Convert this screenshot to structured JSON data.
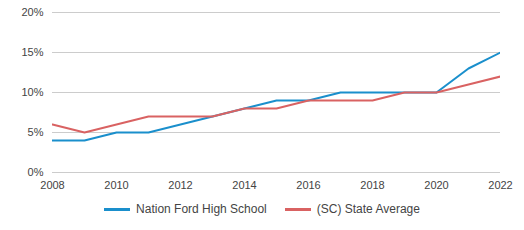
{
  "chart_data": {
    "type": "line",
    "x": [
      2008,
      2009,
      2010,
      2011,
      2012,
      2013,
      2014,
      2015,
      2016,
      2017,
      2018,
      2019,
      2020,
      2021,
      2022
    ],
    "series": [
      {
        "name": "Nation Ford High School",
        "color": "#1a8fcc",
        "values": [
          4,
          4,
          5,
          5,
          6,
          7,
          8,
          9,
          9,
          10,
          10,
          10,
          10,
          13,
          15
        ]
      },
      {
        "name": "(SC) State Average",
        "color": "#d96262",
        "values": [
          6,
          5,
          6,
          7,
          7,
          7,
          8,
          8,
          9,
          9,
          9,
          10,
          10,
          11,
          12
        ]
      }
    ],
    "xlim": [
      2008,
      2022
    ],
    "xticks": [
      2008,
      2010,
      2012,
      2014,
      2016,
      2018,
      2020,
      2022
    ],
    "ylim": [
      0,
      20
    ],
    "yticks": [
      {
        "value": 0,
        "label": "0%"
      },
      {
        "value": 5,
        "label": "5%"
      },
      {
        "value": 10,
        "label": "10%"
      },
      {
        "value": 15,
        "label": "15%"
      },
      {
        "value": 20,
        "label": "20%"
      }
    ],
    "grid": true,
    "legend": "bottom"
  }
}
